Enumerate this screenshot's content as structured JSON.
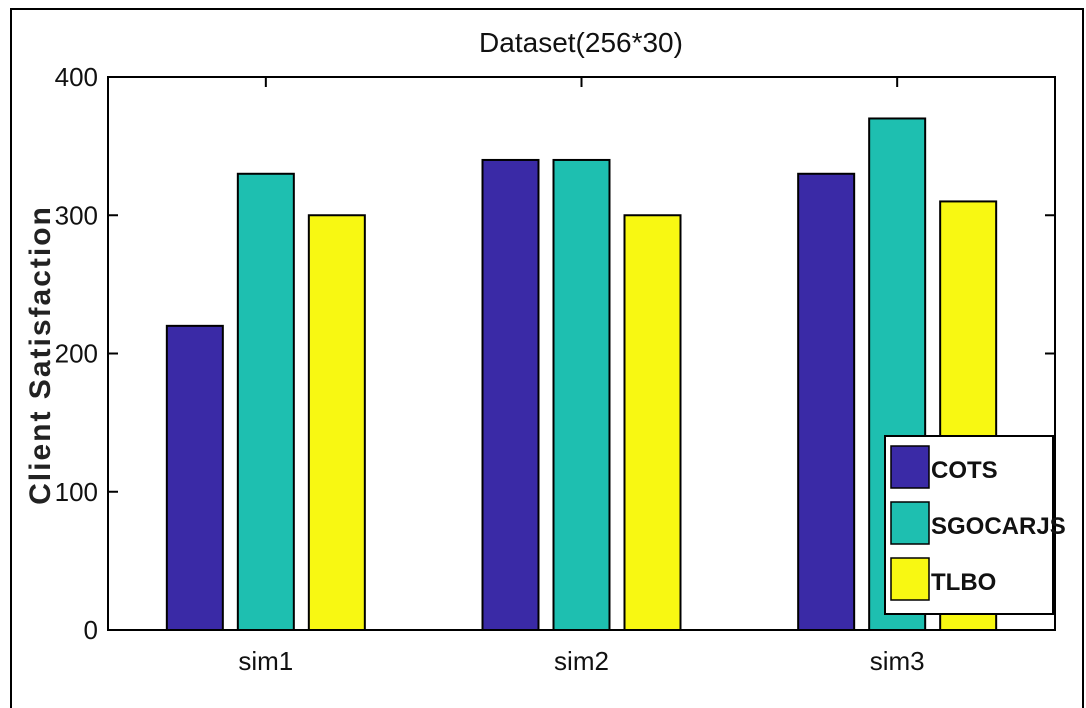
{
  "chart_data": {
    "type": "bar",
    "title": "Dataset(256*30)",
    "xlabel": "",
    "ylabel": "Client Satisfaction",
    "categories": [
      "sim1",
      "sim2",
      "sim3"
    ],
    "ylim": [
      0,
      400
    ],
    "yticks": [
      0,
      100,
      200,
      300,
      400
    ],
    "legend_position": "bottom-right",
    "grid": false,
    "series": [
      {
        "name": "COTS",
        "color": "#3a2aa6",
        "values": [
          220,
          340,
          330
        ]
      },
      {
        "name": "SGOCARJS",
        "color": "#1ebfb0",
        "values": [
          330,
          340,
          370
        ]
      },
      {
        "name": "TLBO",
        "color": "#f8f812",
        "values": [
          300,
          300,
          310
        ]
      }
    ]
  }
}
